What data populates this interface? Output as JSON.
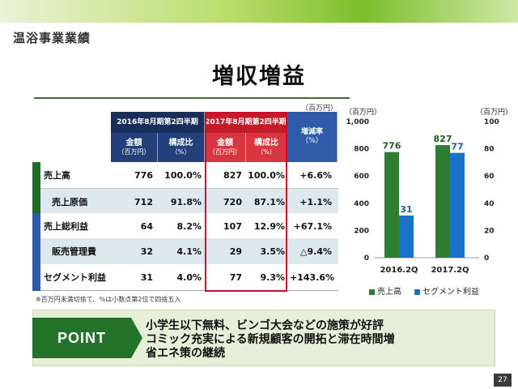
{
  "section_title": "温浴事業業績",
  "main_title": "増収増益",
  "table": {
    "unit": "（百万円）",
    "period_2016": "2016年8月期第2四半期",
    "period_2017": "2017年8月期第2四半期",
    "amount_label": "金額",
    "amount_unit": "（百万円）",
    "ratio_label": "構成比",
    "ratio_unit": "（%）",
    "change_label": "増減率",
    "change_unit": "（%）",
    "rows": [
      {
        "label": "売上高",
        "a2016": "776",
        "r2016": "100.0%",
        "a2017": "827",
        "r2017": "100.0%",
        "change": "+6.6%"
      },
      {
        "label": "売上原価",
        "a2016": "712",
        "r2016": "91.8%",
        "a2017": "720",
        "r2017": "87.1%",
        "change": "+1.1%"
      },
      {
        "label": "売上総利益",
        "a2016": "64",
        "r2016": "8.2%",
        "a2017": "107",
        "r2017": "12.9%",
        "change": "+67.1%"
      },
      {
        "label": "販売管理費",
        "a2016": "32",
        "r2016": "4.1%",
        "a2017": "29",
        "r2017": "3.5%",
        "change": "△9.4%"
      },
      {
        "label": "セグメント利益",
        "a2016": "31",
        "r2016": "4.0%",
        "a2017": "77",
        "r2017": "9.3%",
        "change": "+143.6%"
      }
    ],
    "note": "※百万円未満切捨て、％は小数点第2位で四捨五入"
  },
  "chart_data": {
    "type": "bar",
    "categories": [
      "2016.2Q",
      "2017.2Q"
    ],
    "series": [
      {
        "name": "売上高",
        "values": [
          776,
          827
        ],
        "color": "#2e7d32",
        "axis": "left"
      },
      {
        "name": "セグメント利益",
        "values": [
          31,
          77
        ],
        "color": "#1a73c8",
        "axis": "right"
      }
    ],
    "left_unit": "（百万円）",
    "right_unit": "（百万円）",
    "left_ylim": [
      0,
      1000
    ],
    "right_ylim": [
      0,
      100
    ],
    "left_ticks": [
      "0",
      "200",
      "400",
      "600",
      "800",
      "1,000"
    ],
    "right_ticks": [
      "0",
      "20",
      "40",
      "60",
      "80",
      "100"
    ],
    "data_labels": [
      "776",
      "31",
      "827",
      "77"
    ],
    "legend": [
      "売上高",
      "セグメント利益"
    ],
    "legend_position": "bottom"
  },
  "point": {
    "tag": "POINT",
    "lines": [
      "小学生以下無料、ビンゴ大会などの施策が好評",
      "コミック充実による新規顧客の開拓と滞在時間増",
      "省エネ策の継続"
    ]
  },
  "page_number": "27"
}
